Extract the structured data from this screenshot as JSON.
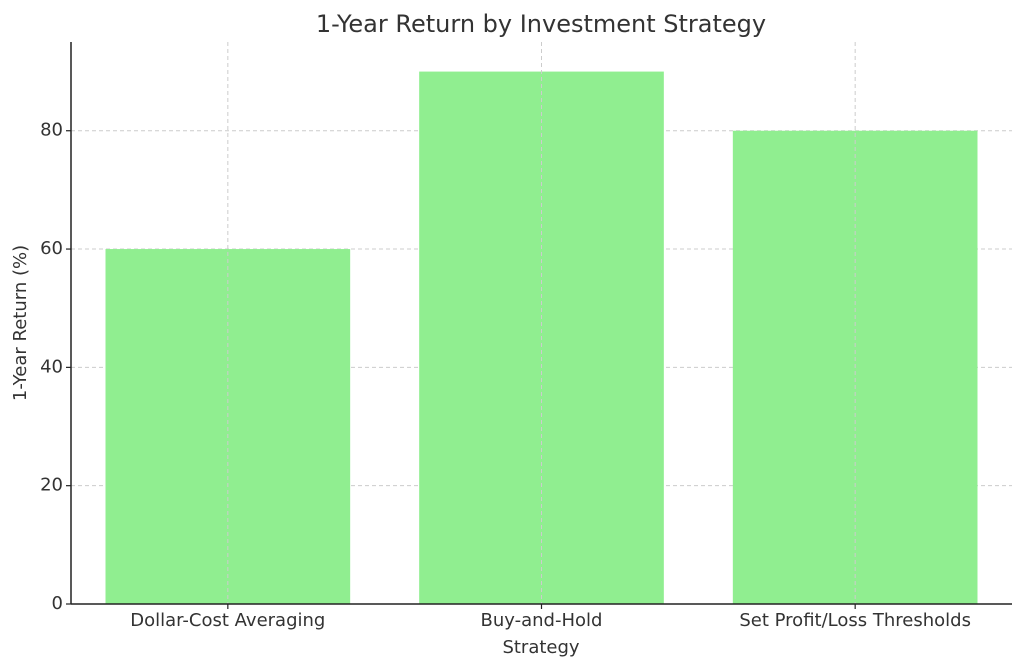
{
  "chart_data": {
    "type": "bar",
    "title": "1-Year Return by Investment Strategy",
    "xlabel": "Strategy",
    "ylabel": "1-Year Return (%)",
    "categories": [
      "Dollar-Cost Averaging",
      "Buy-and-Hold",
      "Set Profit/Loss Thresholds"
    ],
    "values": [
      60,
      90,
      80
    ],
    "ylim": [
      0,
      95
    ],
    "yticks": [
      0,
      20,
      40,
      60,
      80
    ],
    "grid": true,
    "bar_color": "#90EE90",
    "grid_color": "#cccccc",
    "text_color": "#333333"
  }
}
